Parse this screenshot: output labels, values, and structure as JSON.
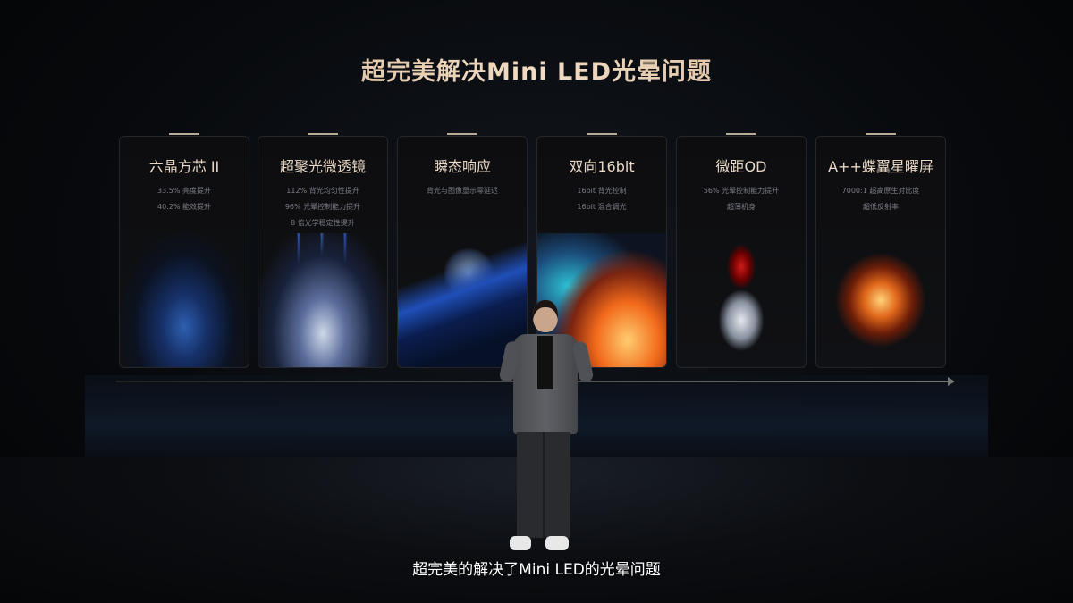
{
  "slide": {
    "title": "超完美解决Mini LED光晕问题",
    "cards": [
      {
        "title": "六晶方芯 II",
        "lines": [
          "33.5% 亮度提升",
          "40.2% 能效提升"
        ]
      },
      {
        "title": "超聚光微透镜",
        "lines": [
          "112% 背光均匀性提升",
          "96% 光晕控制能力提升",
          "8 倍光学稳定性提升"
        ]
      },
      {
        "title": "瞬态响应",
        "lines": [
          "背光与图像显示零延迟"
        ]
      },
      {
        "title": "双向16bit",
        "lines": [
          "16bit 背光控制",
          "16bit 混合调光"
        ]
      },
      {
        "title": "微距OD",
        "lines": [
          "56% 光晕控制能力提升",
          "超薄机身"
        ]
      },
      {
        "title": "A++蝶翼星曜屏",
        "lines": [
          "7000:1 超高原生对比度",
          "超低反射率"
        ]
      }
    ]
  },
  "subtitle": "超完美的解决了Mini LED的光晕问题"
}
